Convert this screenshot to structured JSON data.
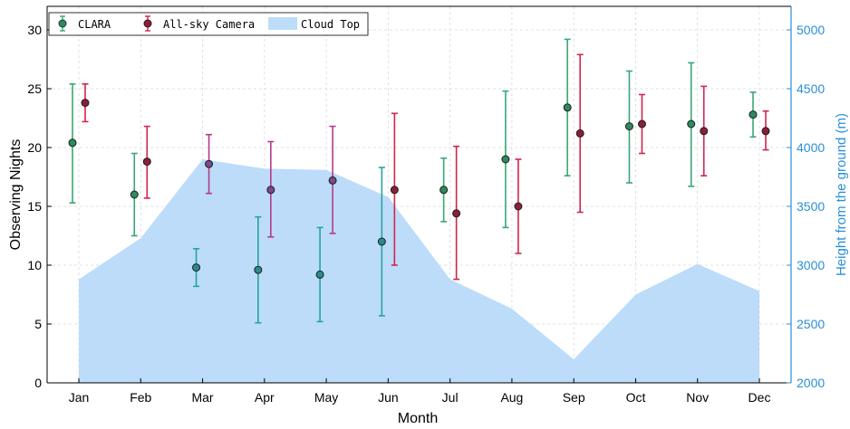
{
  "chart_data": {
    "type": "scatter",
    "categories": [
      "Jan",
      "Feb",
      "Mar",
      "Apr",
      "May",
      "Jun",
      "Jul",
      "Aug",
      "Sep",
      "Oct",
      "Nov",
      "Dec"
    ],
    "xlabel": "Month",
    "ylabel": "Observing Nights",
    "y2label": "Height from the ground (m)",
    "ylim": [
      0,
      32
    ],
    "y2lim": [
      2000,
      5200
    ],
    "yticks": [
      0,
      5,
      10,
      15,
      20,
      25,
      30
    ],
    "y2ticks": [
      2000,
      2500,
      3000,
      3500,
      4000,
      4500,
      5000
    ],
    "grid": true,
    "legend_position": "top-left",
    "series": [
      {
        "name": "CLARA",
        "kind": "errorbar",
        "axis": "left",
        "values": [
          20.4,
          16.0,
          9.8,
          9.6,
          9.2,
          12.0,
          16.4,
          19.0,
          23.4,
          21.8,
          22.0,
          22.8
        ],
        "lower": [
          15.3,
          12.5,
          8.2,
          5.1,
          5.2,
          5.7,
          13.7,
          13.2,
          17.6,
          17.0,
          16.7,
          20.9
        ],
        "upper": [
          25.4,
          19.5,
          11.4,
          14.1,
          13.2,
          18.3,
          19.1,
          24.8,
          29.2,
          26.5,
          27.2,
          24.7
        ],
        "colors": [
          "#3aa676",
          "#3aa676",
          "#27a39c",
          "#27a39c",
          "#27a39c",
          "#27a39c",
          "#3aa676",
          "#3aa676",
          "#3aa676",
          "#3aa676",
          "#3aa676",
          "#3aa676"
        ],
        "marker_colors": [
          "#2e8a5c",
          "#2e8a5c",
          "#2a8a8f",
          "#2a8a8f",
          "#2a8a8f",
          "#2a8a8f",
          "#2e8a5c",
          "#2e8a5c",
          "#2e8a5c",
          "#2e8a5c",
          "#2e8a5c",
          "#2e8a5c"
        ]
      },
      {
        "name": "All-sky Camera",
        "kind": "errorbar",
        "axis": "left",
        "values": [
          23.8,
          18.8,
          18.6,
          16.4,
          17.2,
          16.4,
          14.4,
          15.0,
          21.2,
          22.0,
          21.4,
          21.4
        ],
        "lower": [
          22.2,
          15.7,
          16.1,
          12.4,
          12.7,
          10.0,
          8.8,
          11.0,
          14.5,
          19.5,
          17.6,
          19.8
        ],
        "upper": [
          25.4,
          21.8,
          21.1,
          20.5,
          21.8,
          22.9,
          20.1,
          19.0,
          27.9,
          24.5,
          25.2,
          23.1
        ],
        "colors": [
          "#d0254e",
          "#d0254e",
          "#b43a8a",
          "#b43a8a",
          "#b43a8a",
          "#d0254e",
          "#d0254e",
          "#d0254e",
          "#d0254e",
          "#d0254e",
          "#d0254e",
          "#d0254e"
        ],
        "marker_colors": [
          "#8a1f3a",
          "#8a1f3a",
          "#7a4a8a",
          "#7a4a8a",
          "#7a4a8a",
          "#8a1f3a",
          "#8a1f3a",
          "#8a1f3a",
          "#8a1f3a",
          "#8a1f3a",
          "#8a1f3a",
          "#8a1f3a"
        ]
      },
      {
        "name": "Cloud Top",
        "kind": "area",
        "axis": "right",
        "values": [
          2880,
          3230,
          3900,
          3820,
          3810,
          3580,
          2880,
          2630,
          2200,
          2750,
          3010,
          2780
        ],
        "color": "#bcdcfa"
      }
    ]
  }
}
